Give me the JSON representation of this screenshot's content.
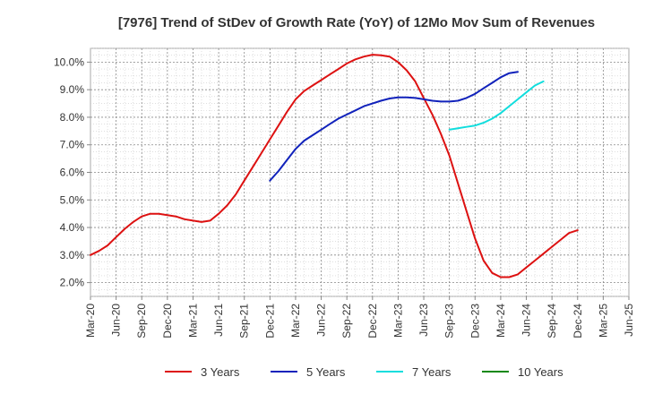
{
  "chart_data": {
    "type": "line",
    "title": "[7976]  Trend of StDev of Growth Rate (YoY) of 12Mo Mov Sum of Revenues",
    "xlabel": "",
    "ylabel": "",
    "x_tick_labels": [
      "Mar-20",
      "Jun-20",
      "Sep-20",
      "Dec-20",
      "Mar-21",
      "Jun-21",
      "Sep-21",
      "Dec-21",
      "Mar-22",
      "Jun-22",
      "Sep-22",
      "Dec-22",
      "Mar-23",
      "Jun-23",
      "Sep-23",
      "Dec-23",
      "Mar-24",
      "Jun-24",
      "Sep-24",
      "Dec-24",
      "Mar-25",
      "Jun-25"
    ],
    "y_tick_labels": [
      "2.0%",
      "3.0%",
      "4.0%",
      "5.0%",
      "6.0%",
      "7.0%",
      "8.0%",
      "9.0%",
      "10.0%"
    ],
    "y_ticks": [
      2,
      3,
      4,
      5,
      6,
      7,
      8,
      9,
      10
    ],
    "ylim": [
      1.5,
      10.5
    ],
    "x_range_months": [
      0,
      63
    ],
    "grid": true,
    "legend_position": "bottom",
    "series": [
      {
        "name": "3 Years",
        "color": "#dd1111",
        "points": [
          [
            0,
            3.0
          ],
          [
            1,
            3.15
          ],
          [
            2,
            3.35
          ],
          [
            3,
            3.65
          ],
          [
            4,
            3.95
          ],
          [
            5,
            4.2
          ],
          [
            6,
            4.4
          ],
          [
            7,
            4.5
          ],
          [
            8,
            4.5
          ],
          [
            9,
            4.45
          ],
          [
            10,
            4.4
          ],
          [
            11,
            4.3
          ],
          [
            12,
            4.25
          ],
          [
            13,
            4.2
          ],
          [
            14,
            4.25
          ],
          [
            15,
            4.5
          ],
          [
            16,
            4.8
          ],
          [
            17,
            5.2
          ],
          [
            18,
            5.7
          ],
          [
            19,
            6.2
          ],
          [
            20,
            6.7
          ],
          [
            21,
            7.2
          ],
          [
            22,
            7.7
          ],
          [
            23,
            8.2
          ],
          [
            24,
            8.65
          ],
          [
            25,
            8.95
          ],
          [
            26,
            9.15
          ],
          [
            27,
            9.35
          ],
          [
            28,
            9.55
          ],
          [
            29,
            9.75
          ],
          [
            30,
            9.95
          ],
          [
            31,
            10.1
          ],
          [
            32,
            10.2
          ],
          [
            33,
            10.27
          ],
          [
            34,
            10.25
          ],
          [
            35,
            10.2
          ],
          [
            36,
            10.0
          ],
          [
            37,
            9.7
          ],
          [
            38,
            9.3
          ],
          [
            39,
            8.7
          ],
          [
            40,
            8.1
          ],
          [
            41,
            7.4
          ],
          [
            42,
            6.6
          ],
          [
            43,
            5.6
          ],
          [
            44,
            4.6
          ],
          [
            45,
            3.6
          ],
          [
            46,
            2.8
          ],
          [
            47,
            2.35
          ],
          [
            48,
            2.2
          ],
          [
            49,
            2.2
          ],
          [
            50,
            2.3
          ],
          [
            51,
            2.55
          ],
          [
            52,
            2.8
          ],
          [
            53,
            3.05
          ],
          [
            54,
            3.3
          ],
          [
            55,
            3.55
          ],
          [
            56,
            3.8
          ],
          [
            57,
            3.9
          ]
        ]
      },
      {
        "name": "5 Years",
        "color": "#1122bb",
        "points": [
          [
            21,
            5.7
          ],
          [
            22,
            6.05
          ],
          [
            23,
            6.45
          ],
          [
            24,
            6.85
          ],
          [
            25,
            7.15
          ],
          [
            26,
            7.35
          ],
          [
            27,
            7.55
          ],
          [
            28,
            7.75
          ],
          [
            29,
            7.95
          ],
          [
            30,
            8.1
          ],
          [
            31,
            8.25
          ],
          [
            32,
            8.4
          ],
          [
            33,
            8.5
          ],
          [
            34,
            8.6
          ],
          [
            35,
            8.68
          ],
          [
            36,
            8.72
          ],
          [
            37,
            8.72
          ],
          [
            38,
            8.7
          ],
          [
            39,
            8.65
          ],
          [
            40,
            8.6
          ],
          [
            41,
            8.57
          ],
          [
            42,
            8.57
          ],
          [
            43,
            8.6
          ],
          [
            44,
            8.7
          ],
          [
            45,
            8.85
          ],
          [
            46,
            9.05
          ],
          [
            47,
            9.25
          ],
          [
            48,
            9.45
          ],
          [
            49,
            9.6
          ],
          [
            50,
            9.65
          ]
        ]
      },
      {
        "name": "7 Years",
        "color": "#11dddd",
        "points": [
          [
            42,
            7.55
          ],
          [
            43,
            7.6
          ],
          [
            44,
            7.65
          ],
          [
            45,
            7.7
          ],
          [
            46,
            7.8
          ],
          [
            47,
            7.95
          ],
          [
            48,
            8.15
          ],
          [
            49,
            8.4
          ],
          [
            50,
            8.65
          ],
          [
            51,
            8.9
          ],
          [
            52,
            9.15
          ],
          [
            53,
            9.3
          ]
        ]
      },
      {
        "name": "10 Years",
        "color": "#118811",
        "points": []
      }
    ]
  }
}
